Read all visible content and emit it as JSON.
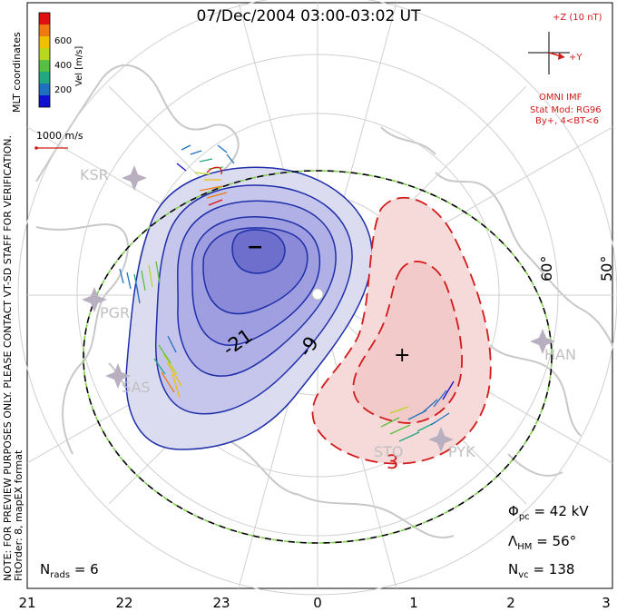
{
  "title": "07/Dec/2004 03:00-03:02 UT",
  "side_notes": {
    "mlt_coordinates": "MLT coordinates",
    "preview_warning": "NOTE: FOR PREVIEW PURPOSES ONLY. PLEASE CONTACT VT-SD STAFF FOR VERIFICATION.",
    "fit_order": "FitOrder: 8, mapEX format"
  },
  "colorbar": {
    "label": "Vel [m/s]",
    "ticks": [
      "600",
      "400",
      "200"
    ],
    "colors": [
      "#e01010",
      "#f07a10",
      "#f0c000",
      "#b8d820",
      "#58c040",
      "#20a880",
      "#2070c0",
      "#1010d0"
    ]
  },
  "vector_scale": {
    "label": "1000 m/s",
    "color": "#d21a1a"
  },
  "imf": {
    "axis_z": "+Z (10 nT)",
    "axis_y": "+Y",
    "source": "OMNI IMF",
    "model_line1": "Stat Mod: RG96",
    "model_line2": "By+, 4<BT<6",
    "color": "#d21a1a"
  },
  "contour_labels": [
    "-21",
    "-9",
    "3"
  ],
  "extrema_markers": [
    "−",
    "+"
  ],
  "latitude_labels": [
    "60°",
    "50°"
  ],
  "stations": [
    "KSR",
    "PGR",
    "SAS",
    "HAN",
    "STO",
    "PYK"
  ],
  "stats": {
    "phi_pc": {
      "symbol": "Φ",
      "sub": "pc",
      "value": "= 42 kV"
    },
    "lambda_hm": {
      "symbol": "Λ",
      "sub": "HM",
      "value": "= 56°"
    },
    "n_vc": {
      "symbol": "N",
      "sub": "vc",
      "value": "= 138"
    },
    "n_rads": {
      "symbol": "N",
      "sub": "rads",
      "value": "= 6"
    }
  },
  "chart_data": {
    "type": "polar contour map",
    "projection": "magnetic local time polar",
    "x_axis_ticks": [
      "21",
      "22",
      "23",
      "0",
      "1",
      "2",
      "3"
    ],
    "cross_polar_cap_potential_kV": 42,
    "heppner_maynard_boundary_lat_deg": 56,
    "n_vectors": 138,
    "n_radars": 6,
    "negative_cell": {
      "contour_levels_kV": [
        -21,
        -9
      ],
      "color": "#3c3cc8"
    },
    "positive_cell": {
      "contour_levels_kV": [
        3
      ],
      "color": "#d21a1a"
    },
    "velocity_colorbar_ticks_mps": [
      200,
      400,
      600
    ],
    "grid": true
  }
}
